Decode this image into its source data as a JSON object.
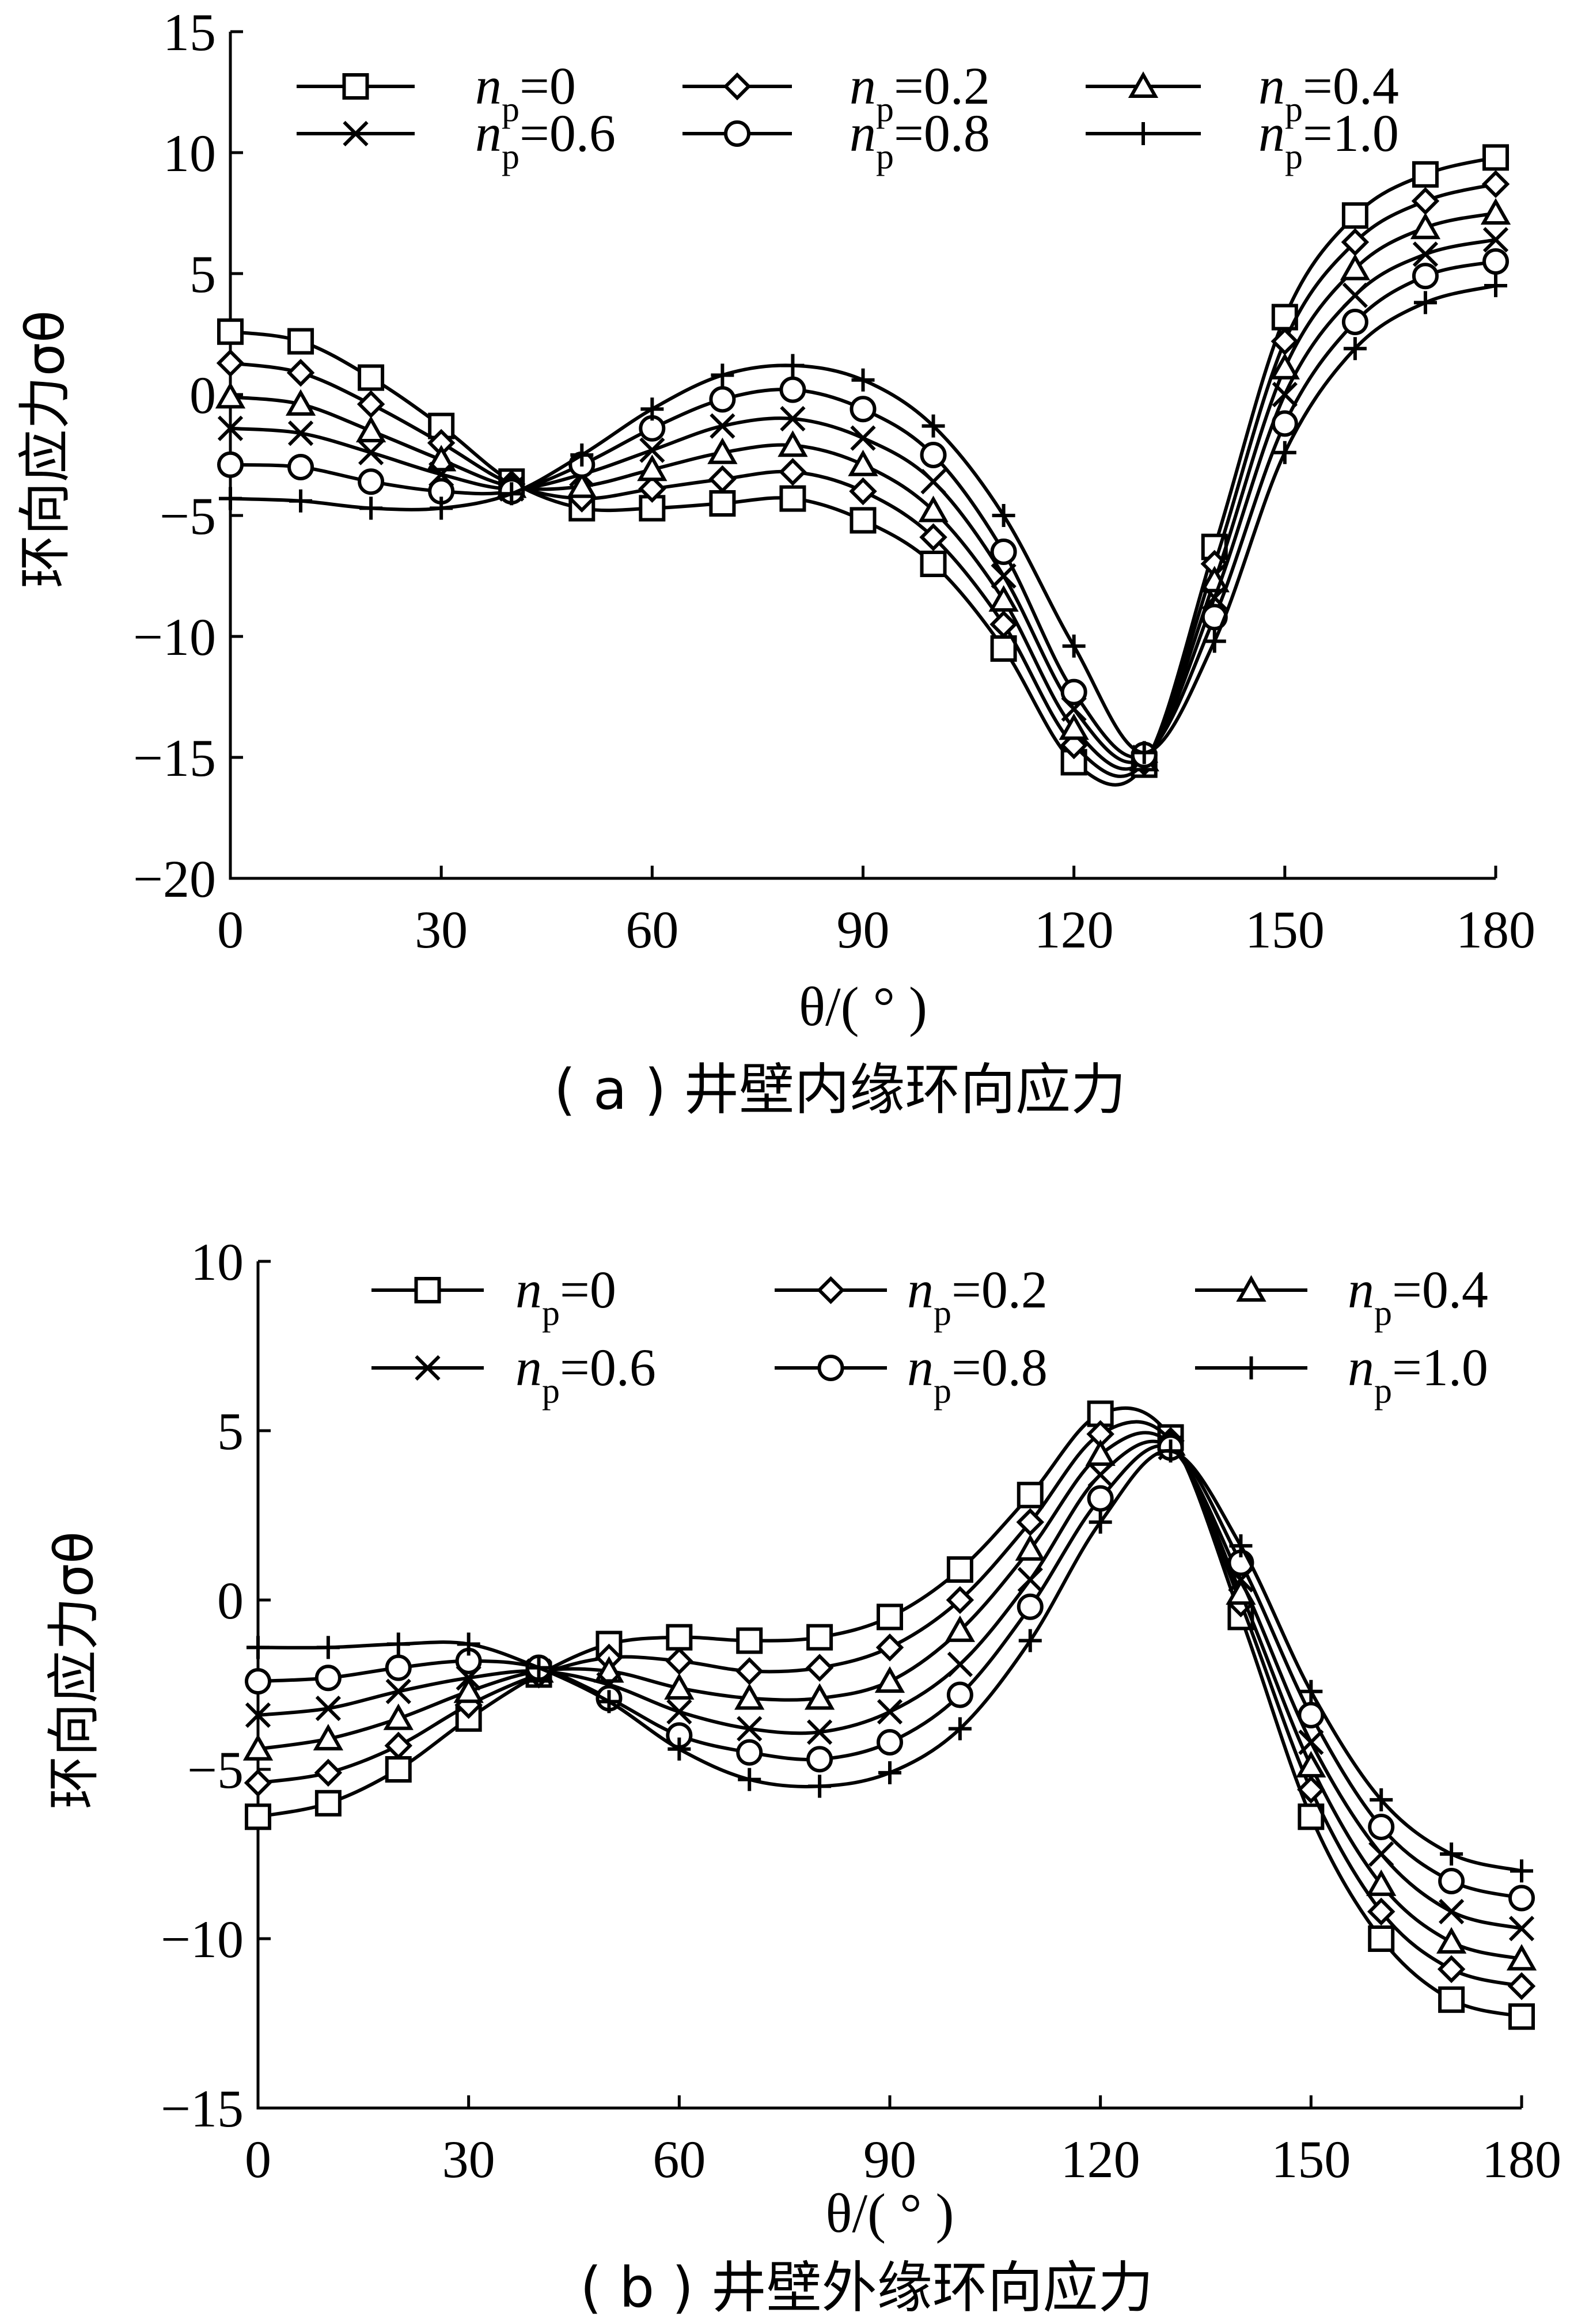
{
  "chart_data": [
    {
      "type": "line",
      "caption": "( a ) 井壁内缘环向应力",
      "xlabel": "θ/( ° )",
      "ylabel": "环向应力σθ",
      "xlim": [
        0,
        180
      ],
      "ylim": [
        -20,
        15
      ],
      "xticks": [
        "0",
        "30",
        "60",
        "90",
        "120",
        "150",
        "180"
      ],
      "yticks": [
        "15",
        "10",
        "5",
        "0",
        "−5",
        "−10",
        "−15",
        "−20"
      ],
      "legend_position": "top",
      "x": [
        0,
        10,
        20,
        30,
        40,
        50,
        60,
        70,
        80,
        90,
        100,
        110,
        120,
        130,
        140,
        150,
        160,
        170,
        180
      ],
      "series": [
        {
          "name": "np=0",
          "marker": "square",
          "values": [
            2.6,
            2.2,
            0.7,
            -1.3,
            -3.6,
            -4.7,
            -4.7,
            -4.5,
            -4.3,
            -5.2,
            -7.0,
            -10.5,
            -15.2,
            -15.3,
            -6.3,
            3.2,
            7.4,
            9.1,
            9.8
          ]
        },
        {
          "name": "np=0.2",
          "marker": "diamond",
          "values": [
            1.3,
            0.9,
            -0.4,
            -2.0,
            -3.7,
            -4.3,
            -3.9,
            -3.5,
            -3.2,
            -4.0,
            -5.9,
            -9.5,
            -14.5,
            -15.2,
            -7.0,
            2.2,
            6.3,
            8.0,
            8.7
          ]
        },
        {
          "name": "np=0.4",
          "marker": "triangle",
          "values": [
            -0.1,
            -0.4,
            -1.5,
            -2.7,
            -3.8,
            -3.8,
            -3.1,
            -2.4,
            -2.1,
            -2.9,
            -4.8,
            -8.5,
            -13.8,
            -15.1,
            -7.7,
            1.1,
            5.2,
            6.9,
            7.5
          ]
        },
        {
          "name": "np=0.6",
          "marker": "x",
          "values": [
            -1.4,
            -1.6,
            -2.4,
            -3.3,
            -3.9,
            -3.3,
            -2.3,
            -1.3,
            -1.0,
            -1.8,
            -3.6,
            -7.5,
            -13.0,
            -15.0,
            -8.4,
            0.0,
            4.1,
            5.8,
            6.4
          ]
        },
        {
          "name": "np=0.8",
          "marker": "circle",
          "values": [
            -2.9,
            -3.0,
            -3.6,
            -4.0,
            -4.0,
            -2.9,
            -1.4,
            -0.2,
            0.2,
            -0.6,
            -2.5,
            -6.5,
            -12.3,
            -14.9,
            -9.2,
            -1.2,
            3.0,
            4.9,
            5.5
          ]
        },
        {
          "name": "np=1.0",
          "marker": "plus",
          "values": [
            -4.3,
            -4.4,
            -4.7,
            -4.7,
            -4.1,
            -2.5,
            -0.6,
            0.8,
            1.2,
            0.6,
            -1.3,
            -5.0,
            -10.4,
            -14.8,
            -10.2,
            -2.4,
            1.9,
            3.8,
            4.5
          ]
        }
      ]
    },
    {
      "type": "line",
      "caption": "( b ) 井壁外缘环向应力",
      "xlabel": "θ/( ° )",
      "ylabel": "环向应力σθ",
      "xlim": [
        0,
        180
      ],
      "ylim": [
        -15,
        10
      ],
      "xticks": [
        "0",
        "30",
        "60",
        "90",
        "120",
        "150",
        "180"
      ],
      "yticks": [
        "10",
        "5",
        "0",
        "−5",
        "−10",
        "−15"
      ],
      "legend_position": "top",
      "x": [
        0,
        10,
        20,
        30,
        40,
        50,
        60,
        70,
        80,
        90,
        100,
        110,
        120,
        130,
        140,
        150,
        160,
        170,
        180
      ],
      "series": [
        {
          "name": "np=0",
          "marker": "square",
          "values": [
            -6.4,
            -6.0,
            -5.0,
            -3.5,
            -2.2,
            -1.3,
            -1.1,
            -1.2,
            -1.1,
            -0.5,
            0.9,
            3.1,
            5.5,
            4.8,
            -0.5,
            -6.4,
            -10.0,
            -11.8,
            -12.3
          ]
        },
        {
          "name": "np=0.2",
          "marker": "diamond",
          "values": [
            -5.4,
            -5.1,
            -4.3,
            -3.1,
            -2.2,
            -1.7,
            -1.8,
            -2.1,
            -2.0,
            -1.4,
            0.0,
            2.3,
            4.9,
            4.7,
            -0.1,
            -5.6,
            -9.2,
            -10.9,
            -11.4
          ]
        },
        {
          "name": "np=0.4",
          "marker": "triangle",
          "values": [
            -4.4,
            -4.1,
            -3.5,
            -2.7,
            -2.1,
            -2.1,
            -2.6,
            -2.9,
            -2.9,
            -2.4,
            -0.9,
            1.5,
            4.3,
            4.6,
            0.2,
            -4.9,
            -8.4,
            -10.1,
            -10.6
          ]
        },
        {
          "name": "np=0.6",
          "marker": "x",
          "values": [
            -3.4,
            -3.2,
            -2.7,
            -2.3,
            -2.1,
            -2.5,
            -3.3,
            -3.8,
            -3.9,
            -3.3,
            -1.9,
            0.6,
            3.7,
            4.5,
            0.6,
            -4.2,
            -7.5,
            -9.2,
            -9.7
          ]
        },
        {
          "name": "np=0.8",
          "marker": "circle",
          "values": [
            -2.4,
            -2.3,
            -2.0,
            -1.8,
            -2.0,
            -2.9,
            -4.0,
            -4.5,
            -4.7,
            -4.2,
            -2.8,
            -0.2,
            3.0,
            4.5,
            1.1,
            -3.4,
            -6.7,
            -8.3,
            -8.8
          ]
        },
        {
          "name": "np=1.0",
          "marker": "plus",
          "values": [
            -1.4,
            -1.4,
            -1.3,
            -1.3,
            -2.0,
            -3.0,
            -4.4,
            -5.3,
            -5.5,
            -5.1,
            -3.8,
            -1.2,
            2.3,
            4.4,
            1.6,
            -2.7,
            -5.9,
            -7.5,
            -8.0
          ]
        }
      ]
    }
  ]
}
